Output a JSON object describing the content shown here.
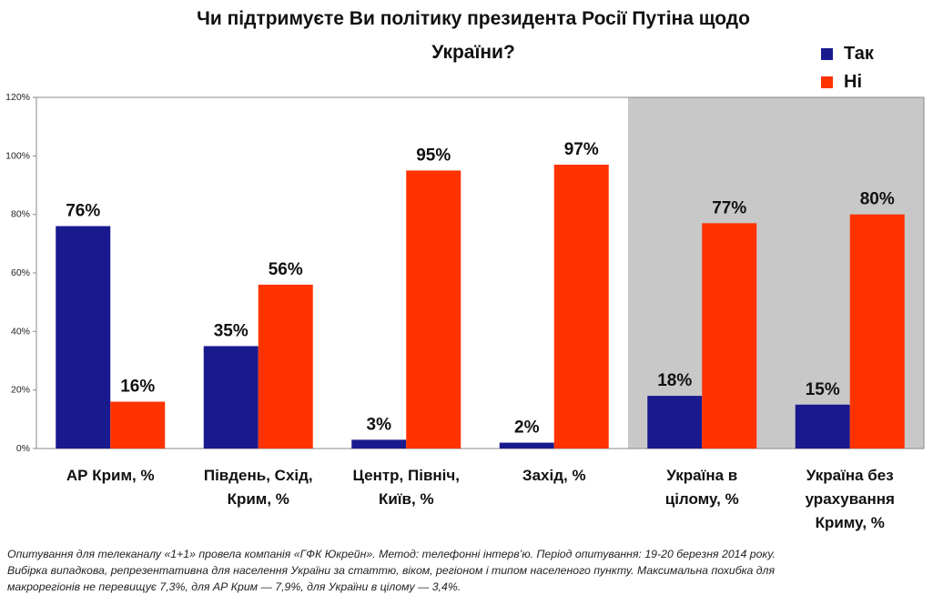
{
  "chart_data": {
    "type": "bar",
    "title_lines": [
      "Чи підтримуєте Ви політику президента Росії Путіна щодо",
      "України?"
    ],
    "categories": [
      [
        "АР Крим, %"
      ],
      [
        "Південь, Схід,",
        "Крим, %"
      ],
      [
        "Центр, Північ,",
        "Київ, %"
      ],
      [
        "Захід, %"
      ],
      [
        "Україна в",
        "цілому, %"
      ],
      [
        "Україна без",
        "урахування",
        "Криму, %"
      ]
    ],
    "series": [
      {
        "name": "Так",
        "color": "#1a1a8f",
        "values": [
          76,
          35,
          3,
          2,
          18,
          15
        ],
        "labels": [
          "76%",
          "35%",
          "3%",
          "2%",
          "18%",
          "15%"
        ]
      },
      {
        "name": "Ні",
        "color": "#ff3300",
        "values": [
          16,
          56,
          95,
          97,
          77,
          80
        ],
        "labels": [
          "16%",
          "56%",
          "95%",
          "97%",
          "77%",
          "80%"
        ]
      }
    ],
    "ylim": [
      0,
      120
    ],
    "yticks": [
      0,
      20,
      40,
      60,
      80,
      100,
      120
    ],
    "ytick_labels": [
      "0%",
      "20%",
      "40%",
      "60%",
      "80%",
      "100%",
      "120%"
    ],
    "highlight_categories": [
      4,
      5
    ],
    "highlight_color": "#c8c8c8",
    "legend_position": "top-right"
  },
  "footer": {
    "lines": [
      "Опитування для телеканалу «1+1» провела компанія «ГФК Юкрейн». Метод: телефонні інтерв’ю. Період опитування: 19-20 березня 2014  року.",
      "Вибірка випадкова, репрезентативна для населення України за статтю, віком, регіоном і типом населеного пункту. Максимальна похибка для",
      "макрорегіонів не перевищує 7,3%, для АР Крим — 7,9%, для України в цілому — 3,4%."
    ]
  }
}
